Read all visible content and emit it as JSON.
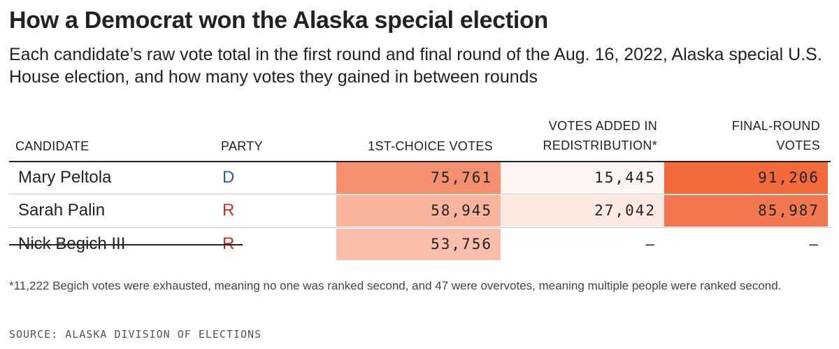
{
  "title": "How a Democrat won the Alaska special election",
  "subtitle": "Each candidate’s raw vote total in the first round and final round of the Aug. 16, 2022, Alaska special U.S. House election, and how many votes they gained in between rounds",
  "colors": {
    "d": "#2a5caa",
    "r": "#cc2b1d",
    "bg_max": "#f26a3c",
    "bg_min": "#ffffff"
  },
  "chart_data": {
    "type": "table",
    "columns": [
      "CANDIDATE",
      "PARTY",
      "1ST-CHOICE VOTES",
      "VOTES ADDED IN REDISTRIBUTION*",
      "FINAL-ROUND VOTES"
    ],
    "headers": {
      "candidate": "CANDIDATE",
      "party": "PARTY",
      "first": "1ST-CHOICE VOTES",
      "added_1": "VOTES ADDED IN",
      "added_2": "REDISTRIBUTION*",
      "final_1": "FINAL-ROUND",
      "final_2": "VOTES"
    },
    "rows": [
      {
        "candidate": "Mary Peltola",
        "party": "D",
        "eliminated": false,
        "first": 75761,
        "first_label": "75,761",
        "added": 15445,
        "added_label": "15,445",
        "final": 91206,
        "final_label": "91,206"
      },
      {
        "candidate": "Sarah Palin",
        "party": "R",
        "eliminated": false,
        "first": 58945,
        "first_label": "58,945",
        "added": 27042,
        "added_label": "27,042",
        "final": 85987,
        "final_label": "85,987"
      },
      {
        "candidate": "Nick Begich III",
        "party": "R",
        "eliminated": true,
        "first": 53756,
        "first_label": "53,756",
        "added": null,
        "added_label": "–",
        "final": null,
        "final_label": "–"
      }
    ]
  },
  "footnote": "*11,222 Begich votes were exhausted, meaning no one was ranked second, and 47 were overvotes, meaning multiple people were ranked second.",
  "source": "SOURCE: ALASKA DIVISION OF ELECTIONS"
}
